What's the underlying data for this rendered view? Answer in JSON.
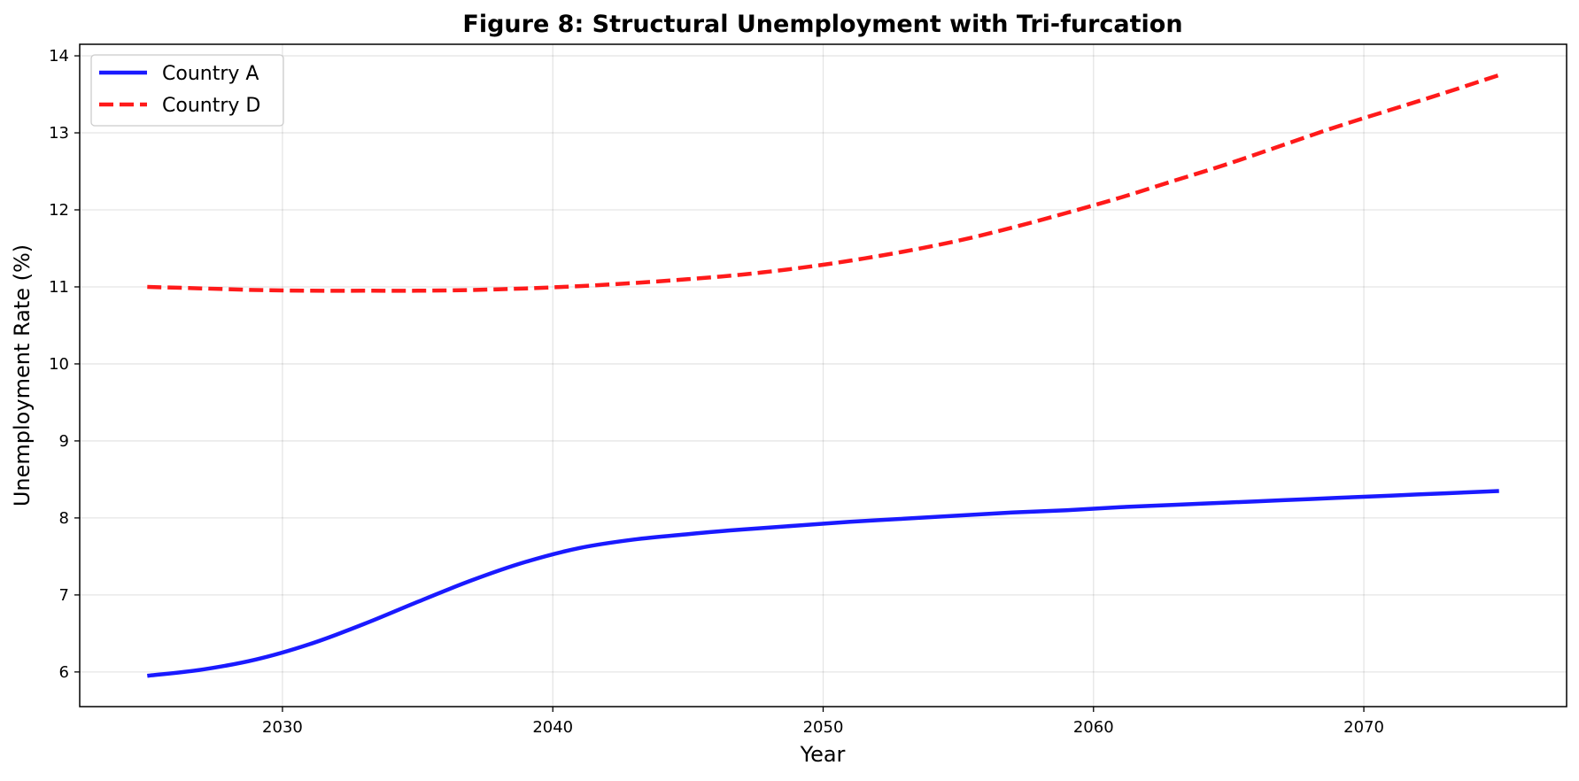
{
  "chart_data": {
    "type": "line",
    "title": "Figure 8: Structural Unemployment with Tri-furcation",
    "xlabel": "Year",
    "ylabel": "Unemployment Rate (%)",
    "xlim": [
      2022.5,
      2077.5
    ],
    "ylim": [
      5.55,
      14.15
    ],
    "x_ticks": [
      2030,
      2040,
      2050,
      2060,
      2070
    ],
    "y_ticks": [
      6,
      7,
      8,
      9,
      10,
      11,
      12,
      13,
      14
    ],
    "grid": true,
    "legend_position": "top-left",
    "x": [
      2025,
      2027,
      2029,
      2031,
      2033,
      2035,
      2037,
      2039,
      2041,
      2043,
      2045,
      2047,
      2049,
      2051,
      2053,
      2055,
      2057,
      2059,
      2061,
      2063,
      2065,
      2067,
      2069,
      2071,
      2073,
      2075
    ],
    "series": [
      {
        "name": "Country A",
        "color": "#1a1aff",
        "style": "solid",
        "values": [
          5.95,
          6.03,
          6.16,
          6.36,
          6.62,
          6.91,
          7.19,
          7.43,
          7.61,
          7.72,
          7.79,
          7.85,
          7.9,
          7.95,
          7.99,
          8.03,
          8.07,
          8.1,
          8.14,
          8.17,
          8.2,
          8.23,
          8.26,
          8.29,
          8.32,
          8.35
        ]
      },
      {
        "name": "Country D",
        "color": "#ff1a1a",
        "style": "dashed",
        "values": [
          11.0,
          10.98,
          10.96,
          10.95,
          10.95,
          10.95,
          10.96,
          10.98,
          11.01,
          11.05,
          11.1,
          11.16,
          11.24,
          11.34,
          11.46,
          11.6,
          11.77,
          11.96,
          12.16,
          12.38,
          12.6,
          12.84,
          13.08,
          13.3,
          13.52,
          13.75
        ]
      }
    ]
  }
}
